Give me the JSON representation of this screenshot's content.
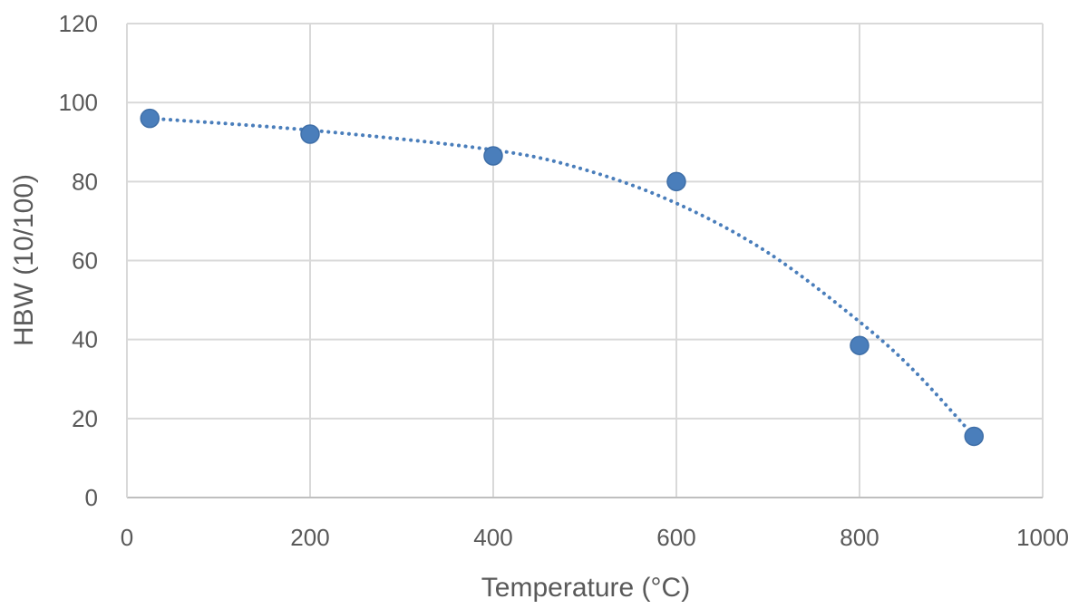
{
  "chart_data": {
    "type": "scatter",
    "title": "",
    "xlabel": "Temperature (°C)",
    "ylabel": "HBW (10/100)",
    "xlim": [
      0,
      1000
    ],
    "ylim": [
      0,
      120
    ],
    "x_ticks": [
      0,
      200,
      400,
      600,
      800,
      1000
    ],
    "y_ticks": [
      0,
      20,
      40,
      60,
      80,
      100,
      120
    ],
    "grid": true,
    "legend": "none",
    "series": [
      {
        "marker_color": "#4a7ebb",
        "points": [
          {
            "x": 25,
            "y": 96
          },
          {
            "x": 200,
            "y": 92
          },
          {
            "x": 400,
            "y": 86.5
          },
          {
            "x": 600,
            "y": 80
          },
          {
            "x": 800,
            "y": 38.5
          },
          {
            "x": 925,
            "y": 15.5
          }
        ],
        "trendline": {
          "style": "dotted",
          "color": "#4a7ebb",
          "points": [
            {
              "x": 25,
              "y": 96
            },
            {
              "x": 200,
              "y": 93
            },
            {
              "x": 400,
              "y": 88
            },
            {
              "x": 500,
              "y": 83
            },
            {
              "x": 600,
              "y": 74.5
            },
            {
              "x": 700,
              "y": 62
            },
            {
              "x": 800,
              "y": 44.5
            },
            {
              "x": 860,
              "y": 32
            },
            {
              "x": 925,
              "y": 15.5
            }
          ]
        }
      }
    ]
  }
}
